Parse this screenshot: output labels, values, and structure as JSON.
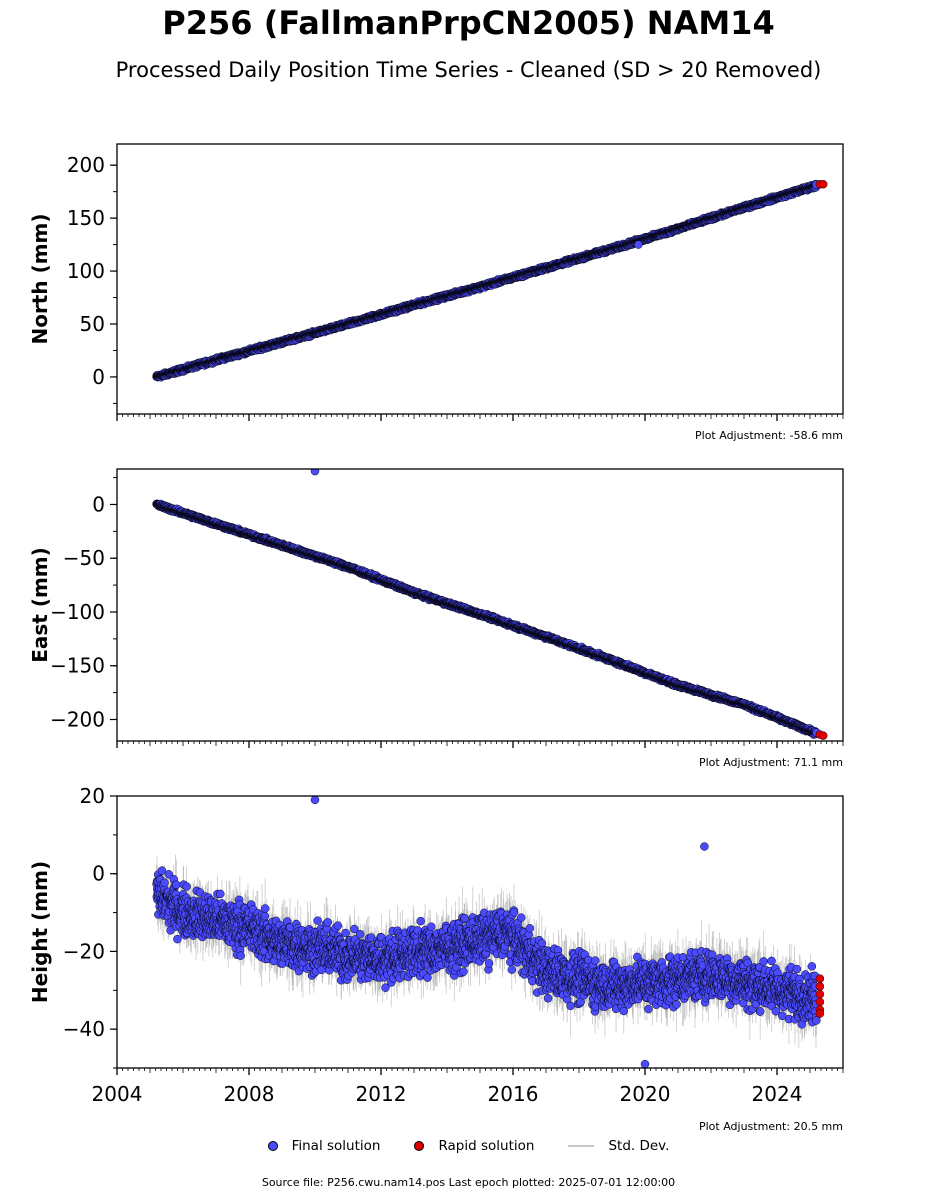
{
  "title": "P256 (FallmanPrpCN2005) NAM14",
  "subtitle": "Processed Daily Position Time Series - Cleaned (SD > 20 Removed)",
  "legend": [
    {
      "label": "Final solution",
      "type": "marker",
      "color": "#4a4aff"
    },
    {
      "label": "Rapid solution",
      "type": "marker",
      "color": "#e00000"
    },
    {
      "label": "Std. Dev.",
      "type": "line",
      "color": "#c8c8c8"
    }
  ],
  "footer": "Source file: P256.cwu.nam14.pos  Last epoch plotted: 2025-07-01 12:00:00",
  "chart_data": [
    {
      "type": "scatter",
      "ylabel": "North (mm)",
      "xlim": [
        2004,
        2026
      ],
      "ylim": [
        -35,
        220
      ],
      "yticks": [
        0,
        50,
        100,
        150,
        200
      ],
      "adjustment": "Plot Adjustment: -58.6 mm",
      "series": [
        {
          "name": "Final solution",
          "x": [
            2005.2,
            2007.0,
            2009.0,
            2011.0,
            2013.0,
            2015.0,
            2017.0,
            2019.0,
            2021.0,
            2023.0,
            2025.2
          ],
          "y": [
            0,
            16,
            33,
            50,
            68,
            85,
            103,
            121,
            140,
            160,
            181
          ]
        },
        {
          "name": "Rapid solution",
          "x": [
            2025.3,
            2025.4
          ],
          "y": [
            182,
            182
          ]
        }
      ],
      "outliers": [
        {
          "x": 2019.8,
          "y": 125
        }
      ]
    },
    {
      "type": "scatter",
      "ylabel": "East (mm)",
      "xlim": [
        2004,
        2026
      ],
      "ylim": [
        -220,
        33
      ],
      "yticks": [
        0,
        -50,
        -100,
        -150,
        -200
      ],
      "adjustment": "Plot Adjustment: 71.1 mm",
      "series": [
        {
          "name": "Final solution",
          "x": [
            2005.2,
            2007.0,
            2009.0,
            2011.0,
            2013.0,
            2015.0,
            2017.0,
            2019.0,
            2021.0,
            2023.0,
            2025.2
          ],
          "y": [
            0,
            -18,
            -38,
            -58,
            -82,
            -102,
            -123,
            -145,
            -168,
            -186,
            -213
          ]
        },
        {
          "name": "Rapid solution",
          "x": [
            2025.3,
            2025.4
          ],
          "y": [
            -214,
            -215
          ]
        }
      ],
      "outliers": [
        {
          "x": 2010.0,
          "y": 31
        }
      ]
    },
    {
      "type": "scatter",
      "ylabel": "Height (mm)",
      "xlim": [
        2004,
        2026
      ],
      "ylim": [
        -50,
        20
      ],
      "yticks": [
        20,
        0,
        -20,
        -40
      ],
      "xticks": [
        2004,
        2008,
        2012,
        2016,
        2020,
        2024
      ],
      "adjustment": "Plot Adjustment: 20.5 mm",
      "series": [
        {
          "name": "Final solution",
          "x": [
            2005.2,
            2006.0,
            2007.0,
            2008.0,
            2009.0,
            2010.0,
            2011.0,
            2012.0,
            2013.0,
            2014.0,
            2015.0,
            2015.8,
            2016.3,
            2017.0,
            2018.0,
            2019.0,
            2020.0,
            2021.0,
            2022.0,
            2023.0,
            2024.0,
            2025.2
          ],
          "y": [
            -5,
            -10,
            -12,
            -14,
            -18,
            -19,
            -21,
            -22,
            -20,
            -19,
            -17,
            -15,
            -19,
            -25,
            -27,
            -29,
            -28,
            -27,
            -26,
            -28,
            -30,
            -32
          ]
        },
        {
          "name": "Rapid solution",
          "x": [
            2025.3,
            2025.3,
            2025.3,
            2025.3,
            2025.3,
            2025.3
          ],
          "y": [
            -27,
            -29,
            -31,
            -33,
            -35,
            -36
          ]
        }
      ],
      "outliers": [
        {
          "x": 2010.0,
          "y": 19
        },
        {
          "x": 2021.8,
          "y": 7
        },
        {
          "x": 2020.0,
          "y": -49
        }
      ]
    }
  ]
}
